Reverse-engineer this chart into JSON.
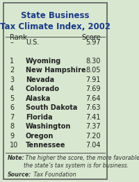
{
  "title": "State Business\nTax Climate Index, 2002",
  "bg_color": "#d8e8d0",
  "border_color": "#5a5a5a",
  "title_color": "#1a3a8a",
  "header_rank": "Rank",
  "header_score": "Score",
  "rows": [
    {
      "rank": "–",
      "state": "U.S.",
      "score": "5.97",
      "bold": false
    },
    {
      "rank": "",
      "state": "",
      "score": "",
      "bold": false
    },
    {
      "rank": "1",
      "state": "Wyoming",
      "score": "8.30",
      "bold": true
    },
    {
      "rank": "2",
      "state": "New Hampshire",
      "score": "8.05",
      "bold": true
    },
    {
      "rank": "3",
      "state": "Nevada",
      "score": "7.91",
      "bold": true
    },
    {
      "rank": "4",
      "state": "Colorado",
      "score": "7.69",
      "bold": true
    },
    {
      "rank": "5",
      "state": "Alaska",
      "score": "7.64",
      "bold": true
    },
    {
      "rank": "6",
      "state": "South Dakota",
      "score": "7.63",
      "bold": true
    },
    {
      "rank": "7",
      "state": "Florida",
      "score": "7.41",
      "bold": true
    },
    {
      "rank": "8",
      "state": "Washington",
      "score": "7.37",
      "bold": true
    },
    {
      "rank": "9",
      "state": "Oregon",
      "score": "7.20",
      "bold": true
    },
    {
      "rank": "10",
      "state": "Tennessee",
      "score": "7.04",
      "bold": true
    }
  ],
  "note_bold": "Note:",
  "note_text": " The higher the score, the more favorable\nthe state’s tax system is for business.",
  "source_bold": "Source:",
  "source_text": " Tax Foundation",
  "text_color": "#222222",
  "note_color": "#333333"
}
